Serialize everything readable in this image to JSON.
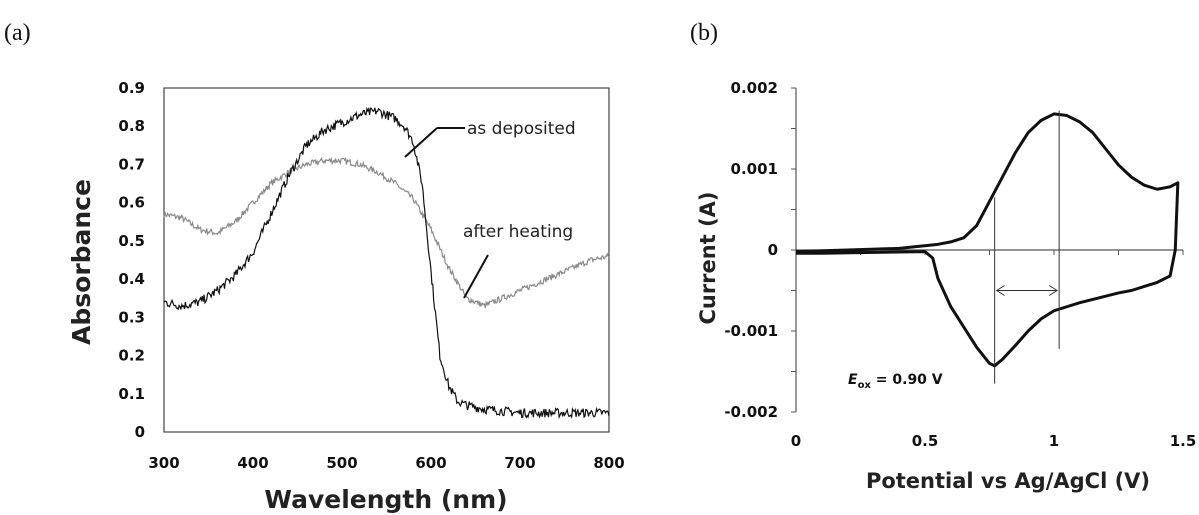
{
  "chart_data": [
    {
      "type": "line",
      "panel_label": "(a)",
      "xlabel": "Wavelength (nm)",
      "ylabel": "Absorbance",
      "xlim": [
        300,
        800
      ],
      "ylim": [
        0,
        0.9
      ],
      "xticks": [
        "300",
        "400",
        "500",
        "600",
        "700",
        "800"
      ],
      "yticks": [
        "0",
        "0.1",
        "0.2",
        "0.3",
        "0.4",
        "0.5",
        "0.6",
        "0.7",
        "0.8",
        "0.9"
      ],
      "grid": false,
      "series": [
        {
          "name": "as deposited",
          "color": "#111111",
          "x": [
            300,
            320,
            340,
            360,
            380,
            400,
            420,
            440,
            460,
            480,
            500,
            520,
            540,
            560,
            570,
            580,
            590,
            600,
            610,
            620,
            630,
            640,
            660,
            680,
            700,
            720,
            740,
            760,
            780,
            800
          ],
          "y": [
            0.34,
            0.33,
            0.34,
            0.37,
            0.41,
            0.47,
            0.57,
            0.67,
            0.75,
            0.79,
            0.81,
            0.83,
            0.84,
            0.82,
            0.8,
            0.76,
            0.65,
            0.42,
            0.2,
            0.12,
            0.08,
            0.07,
            0.06,
            0.055,
            0.05,
            0.05,
            0.05,
            0.05,
            0.05,
            0.05
          ]
        },
        {
          "name": "after heating",
          "color": "#8a8a8a",
          "x": [
            300,
            320,
            340,
            360,
            380,
            400,
            420,
            440,
            460,
            480,
            500,
            520,
            540,
            560,
            580,
            600,
            620,
            640,
            660,
            680,
            700,
            720,
            740,
            760,
            780,
            800
          ],
          "y": [
            0.57,
            0.56,
            0.53,
            0.52,
            0.55,
            0.6,
            0.65,
            0.68,
            0.7,
            0.71,
            0.71,
            0.7,
            0.68,
            0.65,
            0.61,
            0.53,
            0.43,
            0.35,
            0.33,
            0.35,
            0.37,
            0.39,
            0.41,
            0.43,
            0.45,
            0.46
          ]
        }
      ],
      "annotations": [
        {
          "text": "as deposited",
          "x": 578,
          "y": 0.76
        },
        {
          "text": "after heating",
          "x": 635,
          "y": 0.34
        }
      ]
    },
    {
      "type": "line",
      "panel_label": "(b)",
      "xlabel": "Potential vs Ag/AgCl (V)",
      "ylabel": "Current (A)",
      "xlim": [
        0,
        1.5
      ],
      "ylim": [
        -0.002,
        0.002
      ],
      "xticks": [
        "0",
        "0.5",
        "1",
        "1.5"
      ],
      "yticks": [
        "-0.002",
        "-0.001",
        "0",
        "0.001",
        "0.002"
      ],
      "grid": false,
      "series": [
        {
          "name": "",
          "color": "#111111",
          "x": [
            0.0,
            0.2,
            0.4,
            0.55,
            0.6,
            0.65,
            0.7,
            0.75,
            0.8,
            0.85,
            0.9,
            0.95,
            1.0,
            1.05,
            1.1,
            1.15,
            1.2,
            1.25,
            1.3,
            1.35,
            1.4,
            1.45,
            1.48,
            1.47,
            1.45,
            1.4,
            1.35,
            1.3,
            1.25,
            1.2,
            1.1,
            1.0,
            0.95,
            0.9,
            0.85,
            0.8,
            0.77,
            0.75,
            0.7,
            0.65,
            0.6,
            0.55,
            0.53,
            0.5,
            0.3,
            0.1,
            0.0
          ],
          "y": [
            -2e-05,
            0.0,
            2e-05,
            7e-05,
            0.0001,
            0.00015,
            0.0003,
            0.0006,
            0.0009,
            0.0012,
            0.00145,
            0.0016,
            0.00168,
            0.00166,
            0.00158,
            0.00145,
            0.00125,
            0.00105,
            0.0009,
            0.0008,
            0.00075,
            0.00078,
            0.00083,
            0.0,
            -0.00032,
            -0.0004,
            -0.00045,
            -0.0005,
            -0.00053,
            -0.00057,
            -0.00065,
            -0.00075,
            -0.00085,
            -0.001,
            -0.00118,
            -0.00135,
            -0.00143,
            -0.0014,
            -0.0012,
            -0.00095,
            -0.0007,
            -0.00035,
            -0.0001,
            -2e-05,
            -3e-05,
            -4e-05,
            -4e-05
          ]
        }
      ],
      "annotations": [
        {
          "text_var": "E",
          "text_sub": "ox",
          "text_rest": " = 0.90 V"
        }
      ]
    }
  ]
}
